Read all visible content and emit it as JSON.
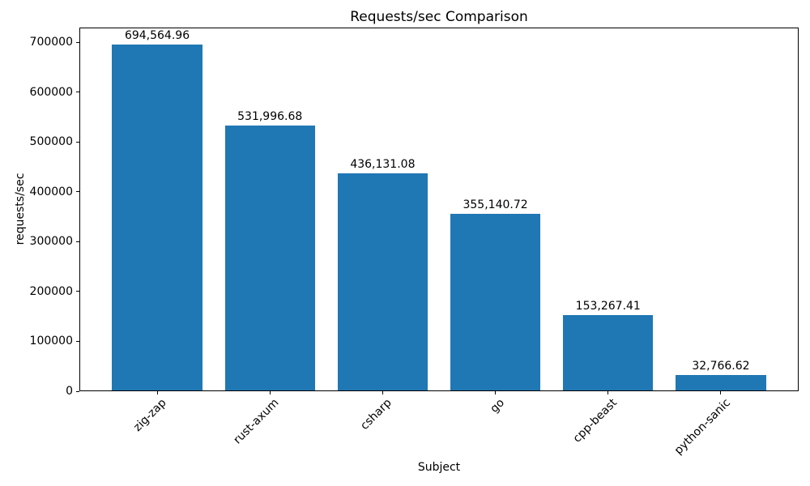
{
  "chart_data": {
    "type": "bar",
    "title": "Requests/sec Comparison",
    "xlabel": "Subject",
    "ylabel": "requests/sec",
    "categories": [
      "zig-zap",
      "rust-axum",
      "csharp",
      "go",
      "cpp-beast",
      "python-sanic"
    ],
    "values": [
      694564.96,
      531996.68,
      436131.08,
      355140.72,
      153267.41,
      32766.62
    ],
    "value_labels": [
      "694,564.96",
      "531,996.68",
      "436,131.08",
      "355,140.72",
      "153,267.41",
      "32,766.62"
    ],
    "yticks": [
      0,
      100000,
      200000,
      300000,
      400000,
      500000,
      600000,
      700000
    ],
    "ylim": [
      0,
      729293
    ],
    "xtick_rotation": 45,
    "bar_color": "#1f77b4",
    "text_color": "#000000",
    "spine_color": "#000000",
    "background_color": "#ffffff",
    "grid": false,
    "legend": null
  }
}
